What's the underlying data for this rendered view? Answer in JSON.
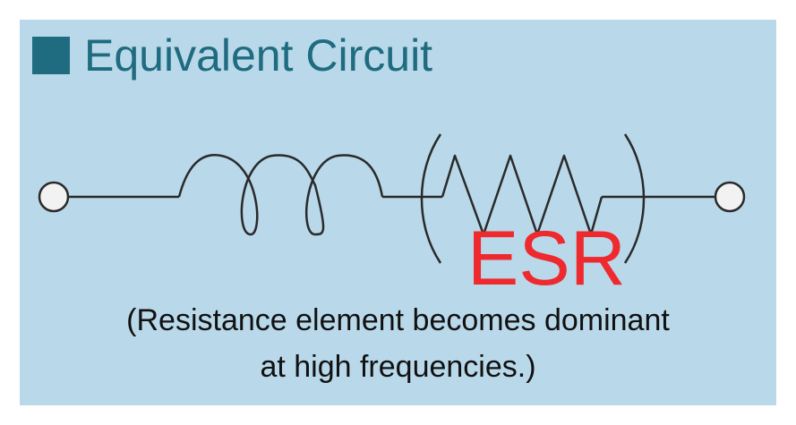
{
  "title": {
    "text": "Equivalent Circuit",
    "bullet_color": "#1f6b80",
    "text_color": "#1f6b80"
  },
  "diagram": {
    "components": [
      "terminal-left",
      "inductor",
      "resistor",
      "terminal-right"
    ],
    "esr_label": "ESR",
    "esr_color": "#ee2a2f"
  },
  "caption": {
    "line1": "(Resistance element becomes dominant",
    "line2": "at high frequencies.)"
  },
  "colors": {
    "background": "#b9d9ea",
    "wire": "#2a2a2a",
    "terminal_fill": "#f2f2f2"
  }
}
